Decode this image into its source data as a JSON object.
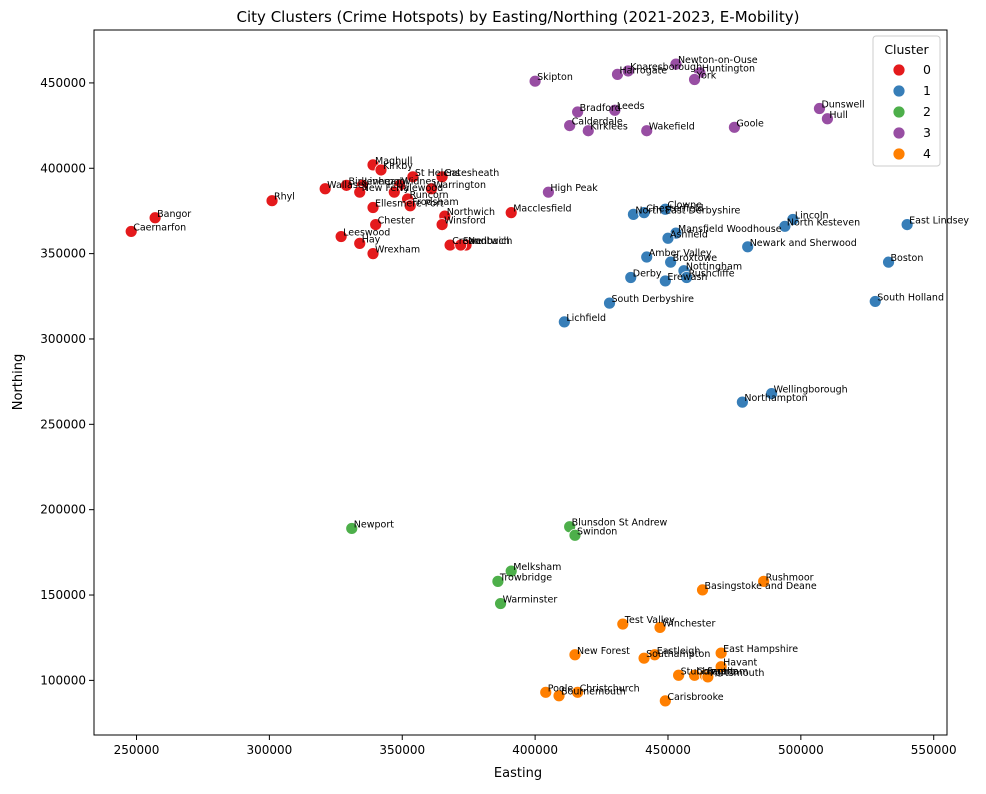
{
  "chart_data": {
    "type": "scatter",
    "title": "City Clusters (Crime Hotspots) by Easting/Northing (2021-2023, E-Mobility)",
    "xlabel": "Easting",
    "ylabel": "Northing",
    "xlim": [
      234000,
      555000
    ],
    "ylim": [
      68000,
      481000
    ],
    "xticks": [
      250000,
      300000,
      350000,
      400000,
      450000,
      500000,
      550000
    ],
    "yticks": [
      100000,
      150000,
      200000,
      250000,
      300000,
      350000,
      400000,
      450000
    ],
    "grid": false,
    "legend": {
      "title": "Cluster",
      "position": "top-right",
      "entries": [
        {
          "label": "0",
          "color": "#e41a1c"
        },
        {
          "label": "1",
          "color": "#377eb8"
        },
        {
          "label": "2",
          "color": "#4daf4a"
        },
        {
          "label": "3",
          "color": "#984ea3"
        },
        {
          "label": "4",
          "color": "#ff7f00"
        }
      ]
    },
    "series": [
      {
        "name": "0",
        "color": "#e41a1c",
        "points": [
          {
            "label": "Caernarfon",
            "x": 248000,
            "y": 363000
          },
          {
            "label": "Bangor",
            "x": 257000,
            "y": 371000
          },
          {
            "label": "Rhyl",
            "x": 301000,
            "y": 381000
          },
          {
            "label": "Maghull",
            "x": 339000,
            "y": 402000
          },
          {
            "label": "Kirkby",
            "x": 342000,
            "y": 399000
          },
          {
            "label": "St Helens",
            "x": 354000,
            "y": 395000
          },
          {
            "label": "Gatesheath",
            "x": 365000,
            "y": 395000
          },
          {
            "label": "Warrington",
            "x": 361000,
            "y": 388000
          },
          {
            "label": "Wallasey",
            "x": 321000,
            "y": 388000
          },
          {
            "label": "Birkenhead",
            "x": 329000,
            "y": 390000
          },
          {
            "label": "Liverpool",
            "x": 335000,
            "y": 390000
          },
          {
            "label": "Widnes",
            "x": 349000,
            "y": 390000
          },
          {
            "label": "New Ferry",
            "x": 334000,
            "y": 386000
          },
          {
            "label": "Halewood",
            "x": 347000,
            "y": 386000
          },
          {
            "label": "Runcorn",
            "x": 352000,
            "y": 382000
          },
          {
            "label": "Ellesmere Port",
            "x": 339000,
            "y": 377000
          },
          {
            "label": "Frodsham",
            "x": 353000,
            "y": 378000
          },
          {
            "label": "Northwich",
            "x": 366000,
            "y": 372000
          },
          {
            "label": "Winsford",
            "x": 365000,
            "y": 367000
          },
          {
            "label": "Macclesfield",
            "x": 391000,
            "y": 374000
          },
          {
            "label": "Chester",
            "x": 340000,
            "y": 367000
          },
          {
            "label": "Leeswood",
            "x": 327000,
            "y": 360000
          },
          {
            "label": "Hay",
            "x": 334000,
            "y": 356000
          },
          {
            "label": "Wrexham",
            "x": 339000,
            "y": 350000
          },
          {
            "label": "Crewe",
            "x": 368000,
            "y": 355000
          },
          {
            "label": "Nantwich",
            "x": 374000,
            "y": 355000
          },
          {
            "label": "Sandbach",
            "x": 372000,
            "y": 355000
          }
        ]
      },
      {
        "name": "1",
        "color": "#377eb8",
        "points": [
          {
            "label": "North East Derbyshire",
            "x": 437000,
            "y": 373000
          },
          {
            "label": "Chesterfield",
            "x": 441000,
            "y": 374000
          },
          {
            "label": "Clowne",
            "x": 449000,
            "y": 376000
          },
          {
            "label": "Mansfield Woodhouse",
            "x": 453000,
            "y": 362000
          },
          {
            "label": "Ashfield",
            "x": 450000,
            "y": 359000
          },
          {
            "label": "Amber Valley",
            "x": 442000,
            "y": 348000
          },
          {
            "label": "Broxtowe",
            "x": 451000,
            "y": 345000
          },
          {
            "label": "Nottingham",
            "x": 456000,
            "y": 340000
          },
          {
            "label": "Rushcliffe",
            "x": 457000,
            "y": 336000
          },
          {
            "label": "Derby",
            "x": 436000,
            "y": 336000
          },
          {
            "label": "Erewash",
            "x": 449000,
            "y": 334000
          },
          {
            "label": "South Derbyshire",
            "x": 428000,
            "y": 321000
          },
          {
            "label": "Lichfield",
            "x": 411000,
            "y": 310000
          },
          {
            "label": "Newark and Sherwood",
            "x": 480000,
            "y": 354000
          },
          {
            "label": "Lincoln",
            "x": 497000,
            "y": 370000
          },
          {
            "label": "North Kesteven",
            "x": 494000,
            "y": 366000
          },
          {
            "label": "East Lindsey",
            "x": 540000,
            "y": 367000
          },
          {
            "label": "Boston",
            "x": 533000,
            "y": 345000
          },
          {
            "label": "South Holland",
            "x": 528000,
            "y": 322000
          },
          {
            "label": "Wellingborough",
            "x": 489000,
            "y": 268000
          },
          {
            "label": "Northampton",
            "x": 478000,
            "y": 263000
          }
        ]
      },
      {
        "name": "2",
        "color": "#4daf4a",
        "points": [
          {
            "label": "Newport",
            "x": 331000,
            "y": 189000
          },
          {
            "label": "Blunsdon St Andrew",
            "x": 413000,
            "y": 190000
          },
          {
            "label": "Swindon",
            "x": 415000,
            "y": 185000
          },
          {
            "label": "Melksham",
            "x": 391000,
            "y": 164000
          },
          {
            "label": "Trowbridge",
            "x": 386000,
            "y": 158000
          },
          {
            "label": "Warminster",
            "x": 387000,
            "y": 145000
          }
        ]
      },
      {
        "name": "3",
        "color": "#984ea3",
        "points": [
          {
            "label": "Skipton",
            "x": 400000,
            "y": 451000
          },
          {
            "label": "Harrogate",
            "x": 431000,
            "y": 455000
          },
          {
            "label": "Knaresborough",
            "x": 435000,
            "y": 457000
          },
          {
            "label": "Newton-on-Ouse",
            "x": 453000,
            "y": 461000
          },
          {
            "label": "Huntington",
            "x": 462000,
            "y": 456000
          },
          {
            "label": "York",
            "x": 460000,
            "y": 452000
          },
          {
            "label": "Bradford",
            "x": 416000,
            "y": 433000
          },
          {
            "label": "Leeds",
            "x": 430000,
            "y": 434000
          },
          {
            "label": "Calderdale",
            "x": 413000,
            "y": 425000
          },
          {
            "label": "Kirklees",
            "x": 420000,
            "y": 422000
          },
          {
            "label": "Wakefield",
            "x": 442000,
            "y": 422000
          },
          {
            "label": "Goole",
            "x": 475000,
            "y": 424000
          },
          {
            "label": "Dunswell",
            "x": 507000,
            "y": 435000
          },
          {
            "label": "Hull",
            "x": 510000,
            "y": 429000
          },
          {
            "label": "High Peak",
            "x": 405000,
            "y": 386000
          }
        ]
      },
      {
        "name": "4",
        "color": "#ff7f00",
        "points": [
          {
            "label": "Rushmoor",
            "x": 486000,
            "y": 158000
          },
          {
            "label": "Basingstoke and Deane",
            "x": 463000,
            "y": 153000
          },
          {
            "label": "Test Valley",
            "x": 433000,
            "y": 133000
          },
          {
            "label": "Winchester",
            "x": 447000,
            "y": 131000
          },
          {
            "label": "East Hampshire",
            "x": 470000,
            "y": 116000
          },
          {
            "label": "New Forest",
            "x": 415000,
            "y": 115000
          },
          {
            "label": "Eastleigh",
            "x": 445000,
            "y": 115000
          },
          {
            "label": "Southampton",
            "x": 441000,
            "y": 113000
          },
          {
            "label": "Havant",
            "x": 470000,
            "y": 108000
          },
          {
            "label": "Stubbington",
            "x": 454000,
            "y": 103000
          },
          {
            "label": "Gosport",
            "x": 460000,
            "y": 103000
          },
          {
            "label": "Fareham",
            "x": 464000,
            "y": 103000
          },
          {
            "label": "Portsmouth",
            "x": 465000,
            "y": 102000
          },
          {
            "label": "Poole",
            "x": 404000,
            "y": 93000
          },
          {
            "label": "Christchurch",
            "x": 416000,
            "y": 93000
          },
          {
            "label": "Bournemouth",
            "x": 409000,
            "y": 91000
          },
          {
            "label": "Carisbrooke",
            "x": 449000,
            "y": 88000
          }
        ]
      }
    ]
  }
}
